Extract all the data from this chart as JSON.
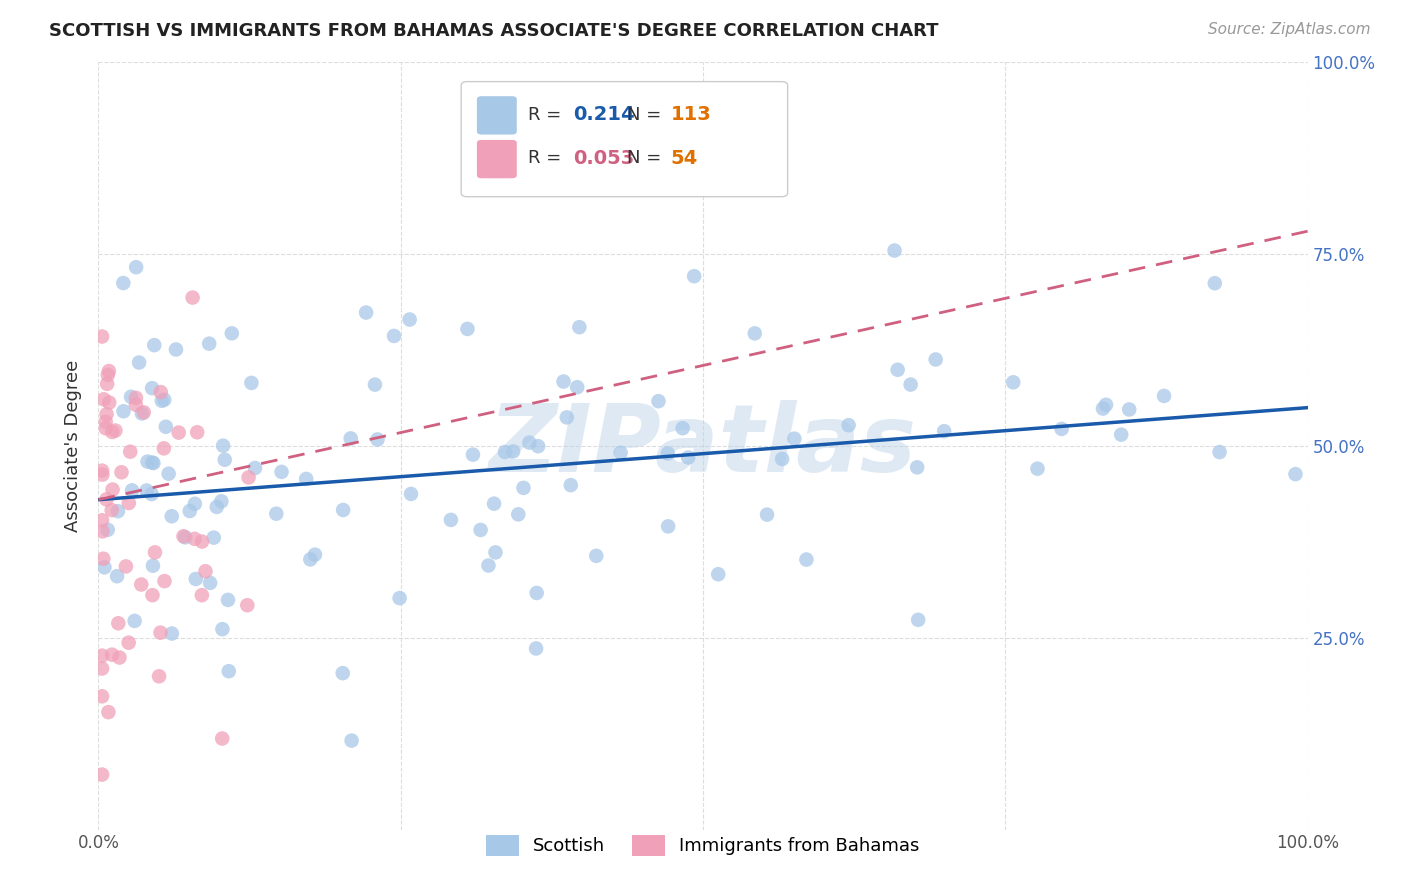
{
  "title": "SCOTTISH VS IMMIGRANTS FROM BAHAMAS ASSOCIATE'S DEGREE CORRELATION CHART",
  "source": "Source: ZipAtlas.com",
  "ylabel": "Associate's Degree",
  "watermark": "ZIPatlas",
  "blue_r": "0.214",
  "blue_n": "113",
  "pink_r": "0.053",
  "pink_n": "54",
  "blue_color": "#a8c8e8",
  "pink_color": "#f0a0b8",
  "blue_line_color": "#1a5aaa",
  "pink_line_color": "#d06080",
  "background_color": "#ffffff",
  "grid_color": "#dddddd",
  "title_color": "#222222",
  "source_color": "#999999",
  "right_tick_color": "#4472c4",
  "n_color": "#e07000",
  "blue_label": "Scottish",
  "pink_label": "Immigrants from Bahamas"
}
